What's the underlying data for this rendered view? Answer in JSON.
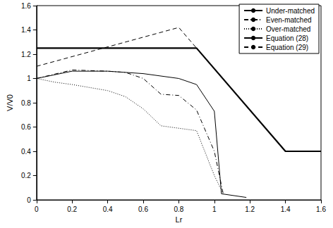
{
  "chart_data": {
    "type": "line",
    "x_label": "Lr",
    "y_label": "V/V0",
    "xlim": [
      0,
      1.6
    ],
    "xticks": [
      0,
      0.2,
      0.4,
      0.6,
      0.8,
      1,
      1.2,
      1.4,
      1.6
    ],
    "ylim": [
      0,
      1.6
    ],
    "yticks": [
      0,
      0.2,
      0.4,
      0.6,
      0.8,
      1,
      1.2,
      1.4,
      1.6
    ],
    "grid": false,
    "legend": "top-right",
    "series": [
      {
        "name": "Under-matched",
        "color": "#000000",
        "line_style": "solid",
        "x": [
          0,
          0.2,
          0.4,
          0.6,
          0.8,
          0.9,
          1.0,
          1.04,
          1.18
        ],
        "values": [
          1.0,
          1.06,
          1.06,
          1.04,
          1.0,
          0.95,
          0.73,
          0.05,
          0.02
        ]
      },
      {
        "name": "Even-matched",
        "color": "#000000",
        "line_style": "dashdot",
        "x": [
          0,
          0.2,
          0.4,
          0.5,
          0.6,
          0.7,
          0.8,
          0.9,
          1.0,
          1.05
        ],
        "values": [
          1.0,
          1.07,
          1.06,
          1.05,
          1.0,
          0.87,
          0.86,
          0.74,
          0.4,
          0.05
        ]
      },
      {
        "name": "Over-matched",
        "color": "#000000",
        "line_style": "dotted",
        "x": [
          0,
          0.1,
          0.2,
          0.4,
          0.5,
          0.6,
          0.7,
          0.9,
          1.0,
          1.05
        ],
        "values": [
          1.0,
          0.97,
          0.95,
          0.9,
          0.85,
          0.75,
          0.61,
          0.57,
          0.2,
          0.05
        ]
      },
      {
        "name": "Equation (28)",
        "color": "#000000",
        "line_style": "thick",
        "x": [
          0,
          0.9,
          1.4,
          1.6
        ],
        "values": [
          1.25,
          1.25,
          0.4,
          0.4
        ]
      },
      {
        "name": "Equation (29)",
        "color": "#000000",
        "line_style": "dashed",
        "x": [
          0,
          0.8,
          1.4,
          1.6
        ],
        "values": [
          1.1,
          1.42,
          0.4,
          0.4
        ]
      }
    ]
  }
}
